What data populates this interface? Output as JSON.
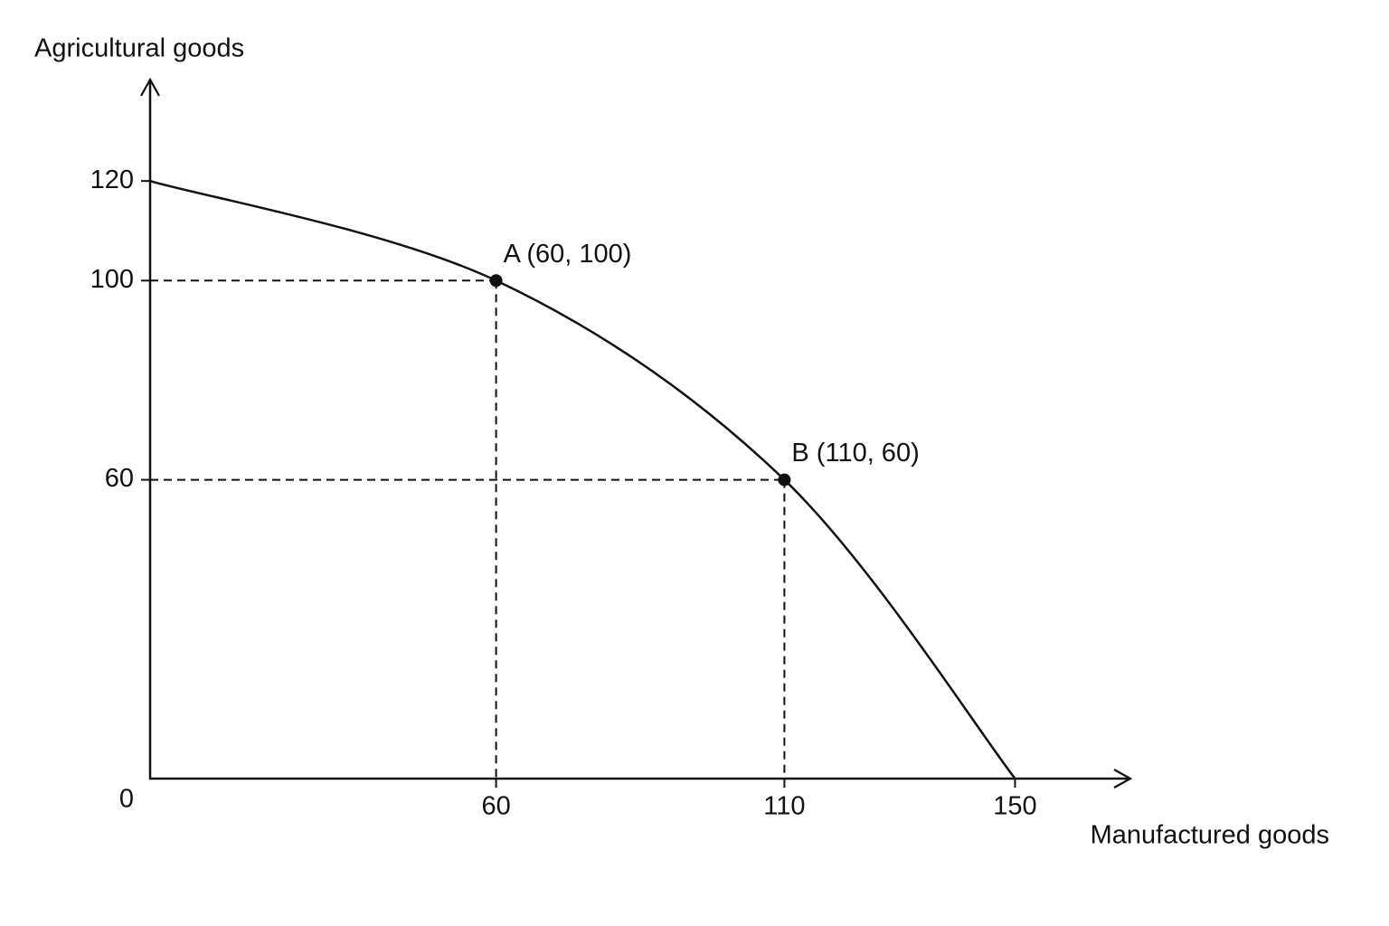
{
  "chart_data": {
    "type": "line",
    "x_label": "Manufactured goods",
    "y_label": "Agricultural goods",
    "x": [
      0,
      60,
      110,
      150
    ],
    "values": [
      120,
      100,
      60,
      0
    ],
    "color": "#111111",
    "xlim": [
      0,
      170
    ],
    "ylim": [
      0,
      140
    ],
    "xticks": [
      0,
      60,
      110,
      150
    ],
    "yticks": [
      60,
      100,
      120
    ],
    "annotations": [
      {
        "text": "A (60, 100)",
        "x": 60,
        "y": 100
      },
      {
        "text": "B (110, 60)",
        "x": 110,
        "y": 60
      }
    ]
  }
}
